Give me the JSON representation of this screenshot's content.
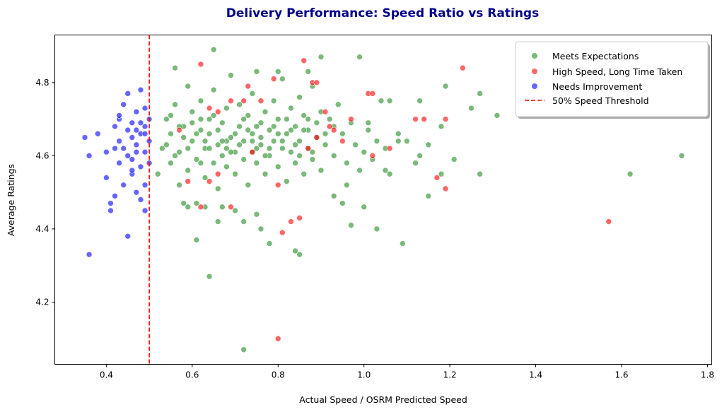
{
  "chart_data": {
    "type": "scatter",
    "title": "Delivery Performance: Speed Ratio vs Ratings",
    "title_color": "#00008b",
    "xlabel": "Actual Speed / OSRM Predicted Speed",
    "ylabel": "Average Ratings",
    "xlim": [
      0.28,
      1.81
    ],
    "ylim": [
      4.03,
      4.93
    ],
    "x_ticks": [
      0.4,
      0.6,
      0.8,
      1.0,
      1.2,
      1.4,
      1.6,
      1.8
    ],
    "x_tick_labels": [
      "0.4",
      "0.6",
      "0.8",
      "1.0",
      "1.2",
      "1.4",
      "1.6",
      "1.8"
    ],
    "y_ticks": [
      4.2,
      4.4,
      4.6,
      4.8
    ],
    "y_tick_labels": [
      "4.2",
      "4.4",
      "4.6",
      "4.8"
    ],
    "grid": false,
    "legend_position": "top-right",
    "threshold": {
      "label": "50% Speed Threshold",
      "x": 0.5,
      "color": "#ff0000",
      "style": "dashed"
    },
    "series": [
      {
        "name": "Meets Expectations",
        "color": "#228b22",
        "points": [
          [
            0.52,
            4.55
          ],
          [
            0.53,
            4.62
          ],
          [
            0.54,
            4.7
          ],
          [
            0.55,
            4.58
          ],
          [
            0.55,
            4.66
          ],
          [
            0.56,
            4.74
          ],
          [
            0.57,
            4.61
          ],
          [
            0.57,
            4.52
          ],
          [
            0.58,
            4.68
          ],
          [
            0.59,
            4.79
          ],
          [
            0.59,
            4.56
          ],
          [
            0.6,
            4.64
          ],
          [
            0.6,
            4.72
          ],
          [
            0.61,
            4.59
          ],
          [
            0.61,
            4.47
          ],
          [
            0.62,
            4.67
          ],
          [
            0.62,
            4.75
          ],
          [
            0.63,
            4.62
          ],
          [
            0.63,
            4.54
          ],
          [
            0.64,
            4.7
          ],
          [
            0.64,
            4.66
          ],
          [
            0.65,
            4.58
          ],
          [
            0.65,
            4.78
          ],
          [
            0.66,
            4.63
          ],
          [
            0.66,
            4.51
          ],
          [
            0.67,
            4.69
          ],
          [
            0.67,
            4.6
          ],
          [
            0.68,
            4.73
          ],
          [
            0.68,
            4.57
          ],
          [
            0.69,
            4.65
          ],
          [
            0.69,
            4.82
          ],
          [
            0.7,
            4.61
          ],
          [
            0.7,
            4.55
          ],
          [
            0.71,
            4.68
          ],
          [
            0.71,
            4.74
          ],
          [
            0.72,
            4.59
          ],
          [
            0.72,
            4.64
          ],
          [
            0.73,
            4.71
          ],
          [
            0.73,
            4.52
          ],
          [
            0.74,
            4.66
          ],
          [
            0.74,
            4.77
          ],
          [
            0.75,
            4.62
          ],
          [
            0.75,
            4.58
          ],
          [
            0.76,
            4.69
          ],
          [
            0.76,
            4.63
          ],
          [
            0.77,
            4.72
          ],
          [
            0.77,
            4.55
          ],
          [
            0.78,
            4.67
          ],
          [
            0.78,
            4.6
          ],
          [
            0.79,
            4.75
          ],
          [
            0.79,
            4.64
          ],
          [
            0.8,
            4.57
          ],
          [
            0.8,
            4.7
          ],
          [
            0.81,
            4.62
          ],
          [
            0.81,
            4.81
          ],
          [
            0.82,
            4.66
          ],
          [
            0.82,
            4.53
          ],
          [
            0.83,
            4.73
          ],
          [
            0.83,
            4.61
          ],
          [
            0.84,
            4.68
          ],
          [
            0.84,
            4.58
          ],
          [
            0.85,
            4.76
          ],
          [
            0.85,
            4.64
          ],
          [
            0.86,
            4.71
          ],
          [
            0.86,
            4.55
          ],
          [
            0.87,
            4.67
          ],
          [
            0.87,
            4.62
          ],
          [
            0.88,
            4.79
          ],
          [
            0.88,
            4.59
          ],
          [
            0.89,
            4.69
          ],
          [
            0.89,
            4.65
          ],
          [
            0.9,
            4.72
          ],
          [
            0.9,
            4.56
          ],
          [
            0.91,
            4.63
          ],
          [
            0.92,
            4.7
          ],
          [
            0.93,
            4.6
          ],
          [
            0.94,
            4.74
          ],
          [
            0.95,
            4.66
          ],
          [
            0.96,
            4.58
          ],
          [
            0.97,
            4.69
          ],
          [
            0.98,
            4.63
          ],
          [
            0.99,
            4.56
          ],
          [
            1.0,
            4.61
          ],
          [
            1.01,
            4.67
          ],
          [
            1.02,
            4.59
          ],
          [
            1.03,
            4.64
          ],
          [
            1.04,
            4.75
          ],
          [
            1.05,
            4.62
          ],
          [
            1.06,
            4.55
          ],
          [
            1.08,
            4.66
          ],
          [
            1.1,
            4.64
          ],
          [
            1.12,
            4.58
          ],
          [
            1.13,
            4.6
          ],
          [
            1.15,
            4.63
          ],
          [
            1.18,
            4.68
          ],
          [
            1.21,
            4.59
          ],
          [
            1.25,
            4.73
          ],
          [
            1.27,
            4.77
          ],
          [
            1.31,
            4.71
          ],
          [
            0.54,
            4.63
          ],
          [
            0.56,
            4.6
          ],
          [
            0.58,
            4.65
          ],
          [
            0.6,
            4.69
          ],
          [
            0.62,
            4.58
          ],
          [
            0.64,
            4.62
          ],
          [
            0.66,
            4.67
          ],
          [
            0.68,
            4.64
          ],
          [
            0.7,
            4.66
          ],
          [
            0.72,
            4.7
          ],
          [
            0.74,
            4.61
          ],
          [
            0.76,
            4.65
          ],
          [
            0.78,
            4.62
          ],
          [
            0.8,
            4.66
          ],
          [
            0.82,
            4.7
          ],
          [
            0.84,
            4.63
          ],
          [
            0.86,
            4.67
          ],
          [
            0.88,
            4.61
          ],
          [
            0.57,
            4.68
          ],
          [
            0.63,
            4.64
          ],
          [
            0.69,
            4.61
          ],
          [
            0.75,
            4.68
          ],
          [
            0.81,
            4.64
          ],
          [
            0.87,
            4.7
          ],
          [
            0.59,
            4.62
          ],
          [
            0.65,
            4.71
          ],
          [
            0.71,
            4.63
          ],
          [
            0.77,
            4.6
          ],
          [
            0.83,
            4.67
          ],
          [
            0.61,
            4.66
          ],
          [
            0.67,
            4.64
          ],
          [
            0.73,
            4.67
          ],
          [
            0.79,
            4.68
          ],
          [
            0.85,
            4.6
          ],
          [
            0.55,
            4.71
          ],
          [
            0.91,
            4.66
          ],
          [
            0.93,
            4.68
          ],
          [
            0.62,
            4.7
          ],
          [
            0.68,
            4.62
          ],
          [
            0.74,
            4.64
          ],
          [
            0.72,
            4.07
          ],
          [
            0.64,
            4.27
          ],
          [
            0.61,
            4.37
          ],
          [
            0.84,
            4.34
          ],
          [
            0.85,
            4.33
          ],
          [
            0.78,
            4.36
          ],
          [
            0.76,
            4.4
          ],
          [
            0.72,
            4.42
          ],
          [
            0.75,
            4.44
          ],
          [
            0.66,
            4.42
          ],
          [
            0.63,
            4.46
          ],
          [
            0.67,
            4.46
          ],
          [
            0.7,
            4.45
          ],
          [
            0.58,
            4.47
          ],
          [
            0.59,
            4.46
          ],
          [
            0.65,
            4.89
          ],
          [
            0.56,
            4.84
          ],
          [
            0.75,
            4.83
          ],
          [
            0.8,
            4.83
          ],
          [
            0.87,
            4.83
          ],
          [
            0.95,
            4.47
          ],
          [
            0.97,
            4.41
          ],
          [
            1.0,
            4.46
          ],
          [
            1.03,
            4.4
          ],
          [
            1.09,
            4.36
          ],
          [
            1.15,
            4.49
          ],
          [
            1.18,
            4.55
          ],
          [
            1.27,
            4.55
          ],
          [
            1.62,
            4.55
          ],
          [
            1.74,
            4.6
          ],
          [
            1.19,
            4.79
          ],
          [
            1.13,
            4.75
          ],
          [
            1.06,
            4.75
          ],
          [
            0.99,
            4.87
          ],
          [
            0.9,
            4.87
          ],
          [
            1.01,
            4.69
          ],
          [
            1.05,
            4.56
          ],
          [
            1.08,
            4.64
          ],
          [
            0.96,
            4.52
          ],
          [
            0.93,
            4.49
          ]
        ]
      },
      {
        "name": "High Speed, Long Time Taken",
        "color": "#ff0000",
        "points": [
          [
            0.62,
            4.85
          ],
          [
            0.64,
            4.73
          ],
          [
            0.66,
            4.72
          ],
          [
            0.69,
            4.75
          ],
          [
            0.73,
            4.79
          ],
          [
            0.79,
            4.81
          ],
          [
            0.86,
            4.86
          ],
          [
            0.88,
            4.8
          ],
          [
            0.89,
            4.8
          ],
          [
            0.91,
            4.72
          ],
          [
            0.93,
            4.67
          ],
          [
            0.97,
            4.7
          ],
          [
            1.01,
            4.77
          ],
          [
            1.02,
            4.77
          ],
          [
            1.12,
            4.7
          ],
          [
            1.14,
            4.7
          ],
          [
            1.19,
            4.7
          ],
          [
            1.23,
            4.84
          ],
          [
            0.57,
            4.67
          ],
          [
            0.59,
            4.53
          ],
          [
            0.62,
            4.46
          ],
          [
            0.64,
            4.53
          ],
          [
            0.66,
            4.55
          ],
          [
            0.69,
            4.46
          ],
          [
            0.74,
            4.61
          ],
          [
            0.8,
            4.52
          ],
          [
            0.81,
            4.39
          ],
          [
            0.83,
            4.42
          ],
          [
            0.85,
            4.43
          ],
          [
            0.87,
            4.62
          ],
          [
            0.89,
            4.65
          ],
          [
            0.92,
            4.68
          ],
          [
            0.95,
            4.64
          ],
          [
            1.02,
            4.6
          ],
          [
            1.06,
            4.62
          ],
          [
            1.17,
            4.54
          ],
          [
            1.19,
            4.51
          ],
          [
            1.57,
            4.42
          ],
          [
            0.8,
            4.1
          ],
          [
            0.72,
            4.75
          ],
          [
            0.76,
            4.75
          ]
        ]
      },
      {
        "name": "Needs Improvement",
        "color": "#0000ff",
        "points": [
          [
            0.35,
            4.65
          ],
          [
            0.36,
            4.33
          ],
          [
            0.36,
            4.6
          ],
          [
            0.38,
            4.66
          ],
          [
            0.4,
            4.54
          ],
          [
            0.4,
            4.61
          ],
          [
            0.41,
            4.45
          ],
          [
            0.41,
            4.47
          ],
          [
            0.42,
            4.62
          ],
          [
            0.42,
            4.49
          ],
          [
            0.43,
            4.58
          ],
          [
            0.43,
            4.64
          ],
          [
            0.43,
            4.7
          ],
          [
            0.44,
            4.74
          ],
          [
            0.44,
            4.52
          ],
          [
            0.45,
            4.67
          ],
          [
            0.45,
            4.38
          ],
          [
            0.45,
            4.77
          ],
          [
            0.46,
            4.55
          ],
          [
            0.46,
            4.59
          ],
          [
            0.46,
            4.69
          ],
          [
            0.47,
            4.63
          ],
          [
            0.47,
            4.5
          ],
          [
            0.47,
            4.72
          ],
          [
            0.48,
            4.78
          ],
          [
            0.48,
            4.66
          ],
          [
            0.48,
            4.57
          ],
          [
            0.48,
            4.48
          ],
          [
            0.49,
            4.61
          ],
          [
            0.49,
            4.68
          ],
          [
            0.49,
            4.73
          ],
          [
            0.49,
            4.52
          ],
          [
            0.49,
            4.45
          ],
          [
            0.5,
            4.64
          ],
          [
            0.5,
            4.7
          ],
          [
            0.5,
            4.58
          ],
          [
            0.44,
            4.62
          ],
          [
            0.46,
            4.65
          ],
          [
            0.47,
            4.61
          ],
          [
            0.48,
            4.69
          ],
          [
            0.42,
            4.68
          ],
          [
            0.45,
            4.6
          ],
          [
            0.47,
            4.67
          ],
          [
            0.49,
            4.66
          ],
          [
            0.43,
            4.71
          ],
          [
            0.46,
            4.56
          ]
        ]
      }
    ]
  }
}
